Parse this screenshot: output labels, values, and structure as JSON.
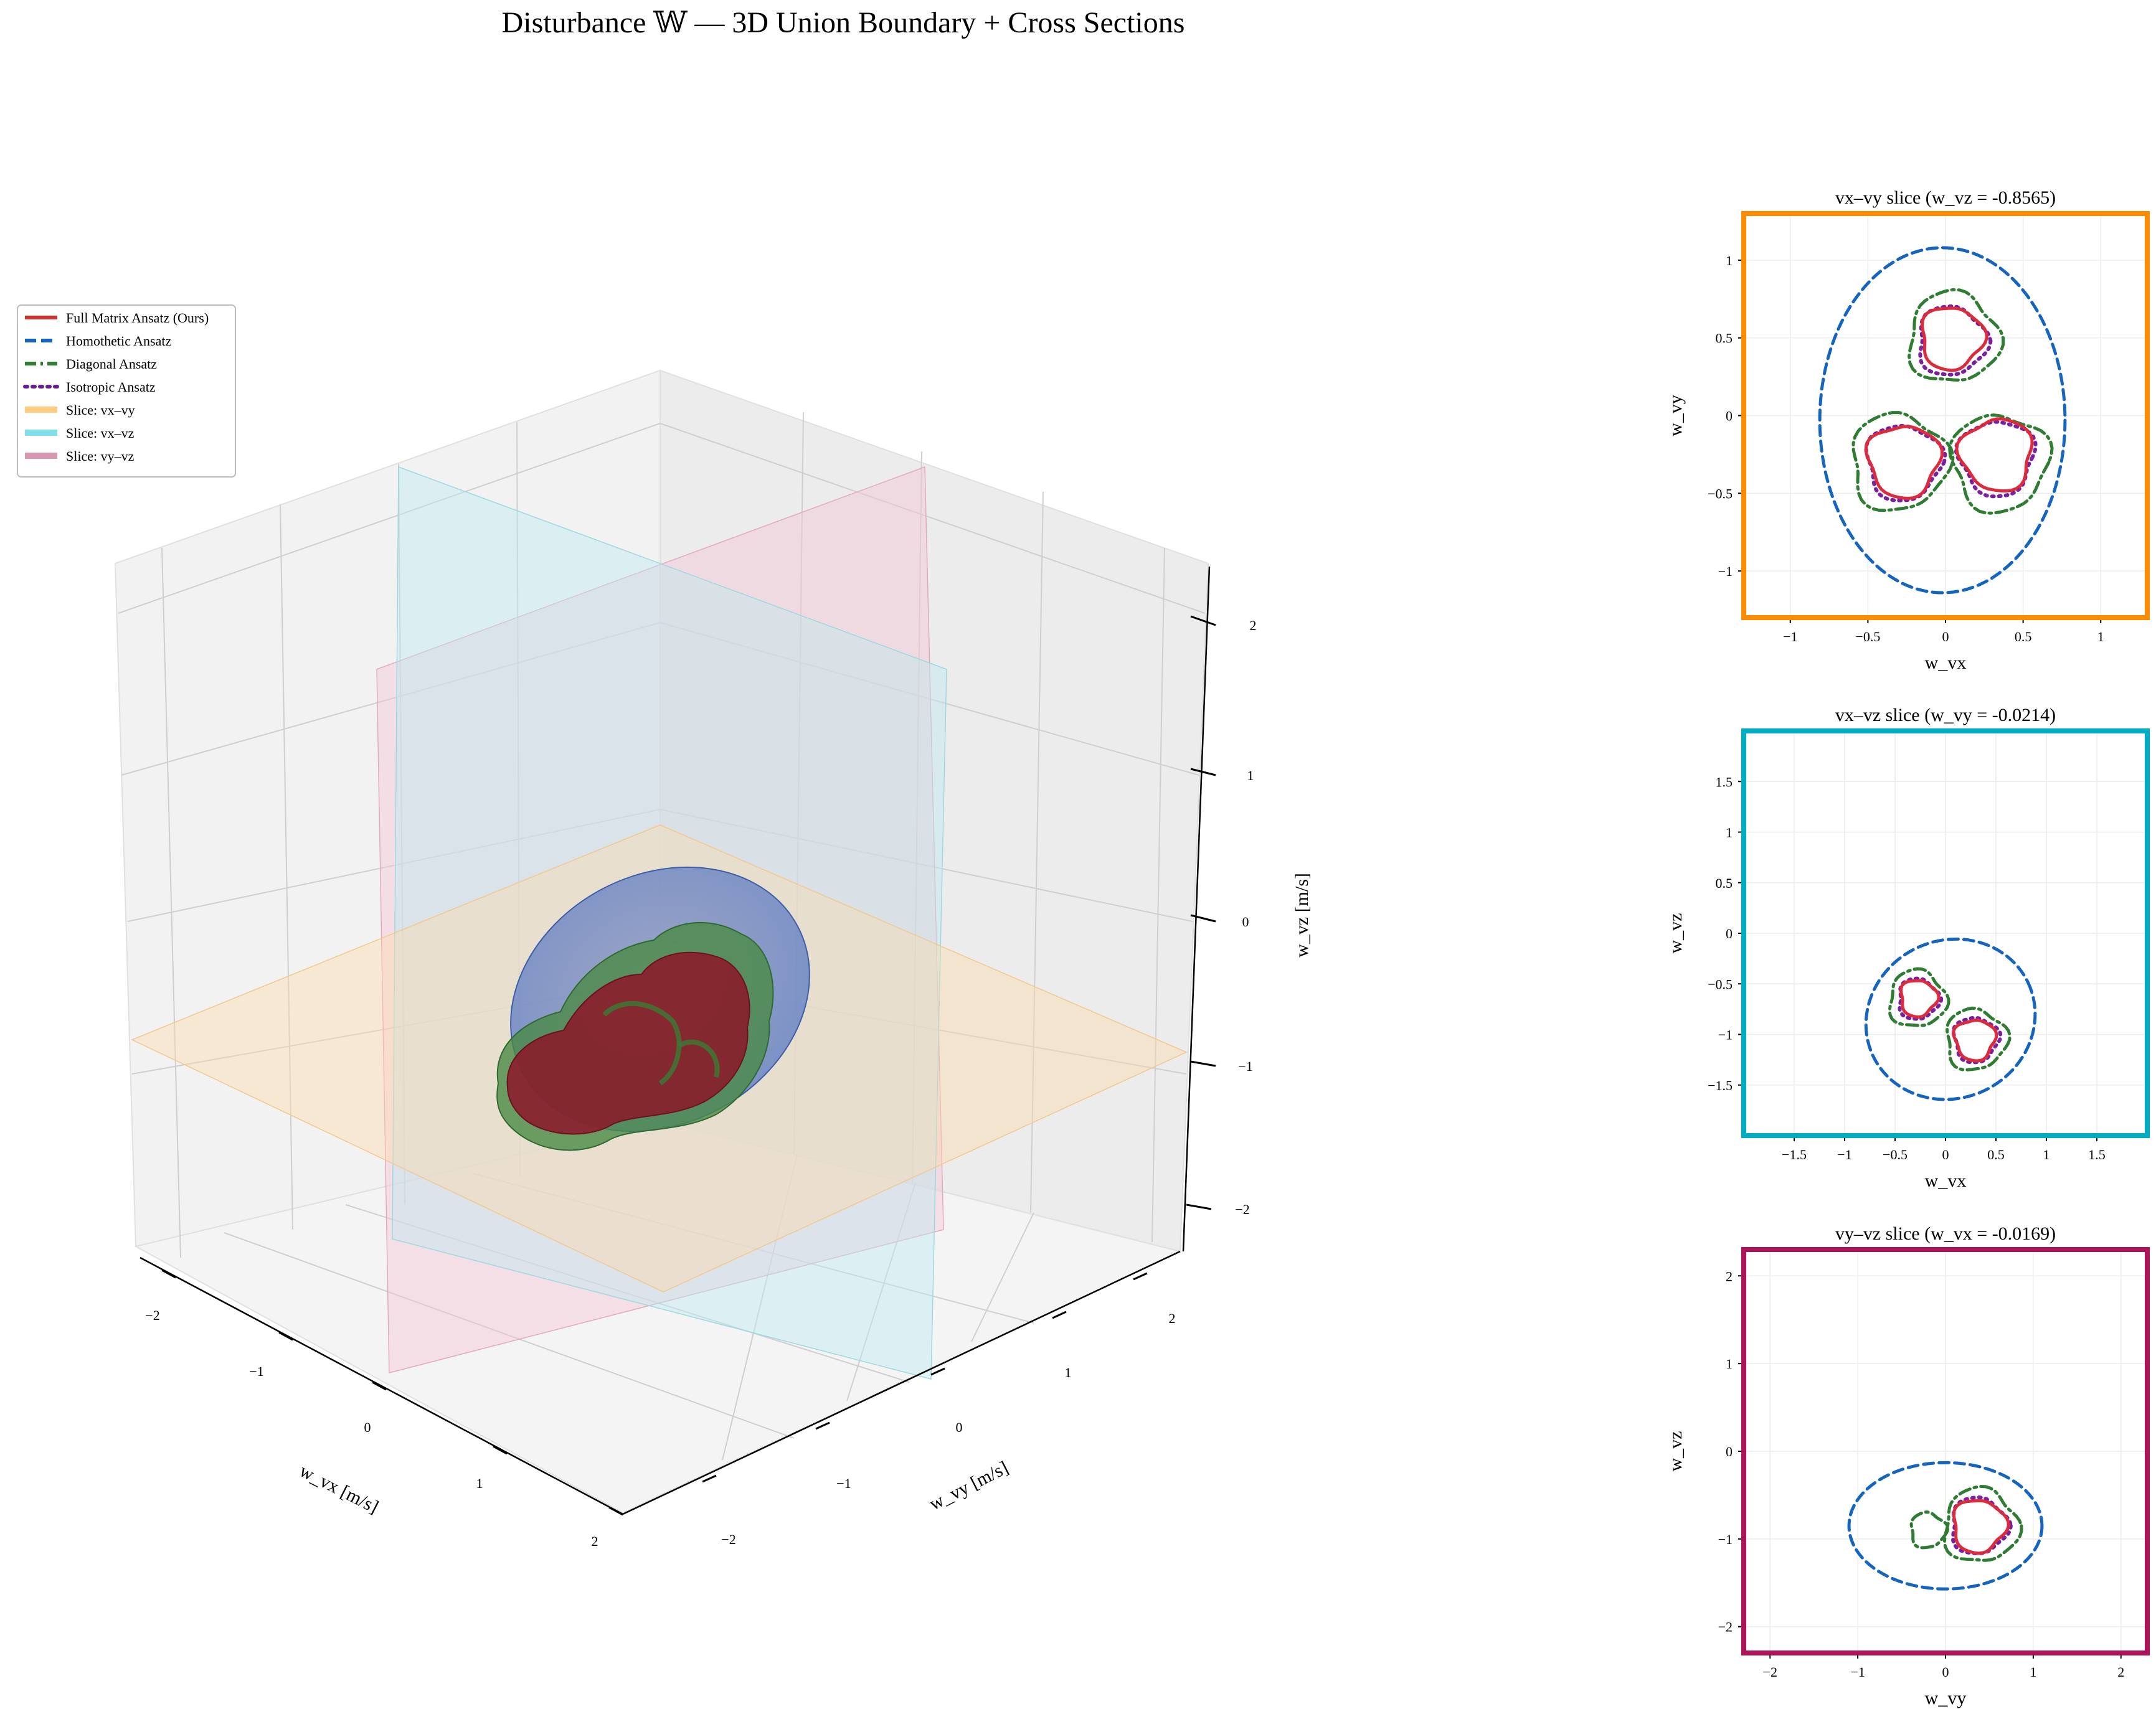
{
  "figure": {
    "title": "Disturbance 𝕎 — 3D Union Boundary + Cross Sections"
  },
  "legend": {
    "items": [
      {
        "label": "Full Matrix Ansatz (Ours)",
        "color": "#d32f2f",
        "style": "solid"
      },
      {
        "label": "Homothetic Ansatz",
        "color": "#1565c0",
        "style": "dashed"
      },
      {
        "label": "Diagonal Ansatz",
        "color": "#2e7d32",
        "style": "dashdot"
      },
      {
        "label": "Isotropic Ansatz",
        "color": "#6a1b9a",
        "style": "dotted"
      },
      {
        "label": "Slice: vx–vy",
        "color": "#ffcc80",
        "style": "solid"
      },
      {
        "label": "Slice: vx–vz",
        "color": "#80deea",
        "style": "solid"
      },
      {
        "label": "Slice: vy–vz",
        "color": "#d896b0",
        "style": "solid"
      }
    ]
  },
  "chart_data": [
    {
      "type": "scatter",
      "kind": "3d-surface",
      "xlabel": "w_vx [m/s]",
      "ylabel": "w_vy [m/s]",
      "zlabel": "w_vz [m/s]",
      "xlim": [
        -2.2,
        2.2
      ],
      "ylim": [
        -2.2,
        2.2
      ],
      "zlim": [
        -2.2,
        2.2
      ],
      "x_ticks": [
        "−2",
        "−1",
        "0",
        "1",
        "2"
      ],
      "y_ticks": [
        "−2",
        "−1",
        "0",
        "1",
        "2"
      ],
      "z_ticks": [
        "−2",
        "−1",
        "0",
        "1",
        "2"
      ],
      "surfaces": [
        {
          "name": "Homothetic Ansatz",
          "color": "#4a6fc4"
        },
        {
          "name": "Diagonal Ansatz",
          "color": "#3a8a3a"
        },
        {
          "name": "Full Matrix Ansatz (Ours)",
          "color": "#8b1a2a"
        }
      ],
      "slice_planes": [
        {
          "name": "Slice: vx–vy",
          "color": "#ffcc80"
        },
        {
          "name": "Slice: vx–vz",
          "color": "#80deea"
        },
        {
          "name": "Slice: vy–vz",
          "color": "#d896b0"
        }
      ]
    },
    {
      "type": "line",
      "title": "vx–vy slice  (w_vz = -0.8565)",
      "xlabel": "w_vx",
      "ylabel": "w_vy",
      "xlim": [
        -1.3,
        1.3
      ],
      "ylim": [
        -1.3,
        1.3
      ],
      "x_ticks": [
        -1.0,
        -0.5,
        0.0,
        0.5,
        1.0
      ],
      "y_ticks": [
        -1.0,
        -0.5,
        0.0,
        0.5,
        1.0
      ],
      "frame_color": "#ff8c00",
      "series": [
        {
          "name": "Homothetic Ansatz",
          "shape": "ellipse",
          "cx": -0.02,
          "cy": -0.03,
          "rx": 0.79,
          "ry": 1.11
        },
        {
          "name": "Diagonal Ansatz",
          "shape": "blobs",
          "blobs": [
            {
              "cx": 0.05,
              "cy": 0.5,
              "r": 0.29
            },
            {
              "cx": -0.3,
              "cy": -0.3,
              "r": 0.31
            },
            {
              "cx": 0.35,
              "cy": -0.3,
              "r": 0.31
            }
          ]
        },
        {
          "name": "Isotropic Ansatz",
          "shape": "blobs",
          "blobs": [
            {
              "cx": 0.04,
              "cy": 0.48,
              "r": 0.22
            },
            {
              "cx": -0.27,
              "cy": -0.3,
              "r": 0.24
            },
            {
              "cx": 0.33,
              "cy": -0.27,
              "r": 0.24
            }
          ]
        },
        {
          "name": "Full Matrix Ansatz (Ours)",
          "shape": "blobs",
          "blobs": [
            {
              "cx": 0.04,
              "cy": 0.5,
              "r": 0.2
            },
            {
              "cx": -0.27,
              "cy": -0.29,
              "r": 0.23
            },
            {
              "cx": 0.33,
              "cy": -0.25,
              "r": 0.23
            }
          ]
        }
      ]
    },
    {
      "type": "line",
      "title": "vx–vz slice  (w_vy = -0.0214)",
      "xlabel": "w_vx",
      "ylabel": "w_vz",
      "xlim": [
        -2.0,
        2.0
      ],
      "ylim": [
        -2.0,
        2.0
      ],
      "x_ticks": [
        -1.5,
        -1.0,
        -0.5,
        0.0,
        0.5,
        1.0,
        1.5
      ],
      "y_ticks": [
        -1.5,
        -1.0,
        -0.5,
        0.0,
        0.5,
        1.0,
        1.5
      ],
      "frame_color": "#00acc1",
      "series": [
        {
          "name": "Homothetic Ansatz",
          "shape": "ellipse",
          "cx": 0.05,
          "cy": -0.85,
          "rx": 0.85,
          "ry": 0.78,
          "angle": -25
        },
        {
          "name": "Diagonal Ansatz",
          "shape": "blobs",
          "blobs": [
            {
              "cx": -0.28,
              "cy": -0.65,
              "r": 0.28
            },
            {
              "cx": 0.3,
              "cy": -1.05,
              "r": 0.3
            }
          ]
        },
        {
          "name": "Isotropic Ansatz",
          "shape": "blobs",
          "blobs": [
            {
              "cx": -0.27,
              "cy": -0.65,
              "r": 0.2
            },
            {
              "cx": 0.3,
              "cy": -1.05,
              "r": 0.22
            }
          ]
        },
        {
          "name": "Full Matrix Ansatz (Ours)",
          "shape": "blobs",
          "blobs": [
            {
              "cx": -0.27,
              "cy": -0.64,
              "r": 0.18
            },
            {
              "cx": 0.29,
              "cy": -1.05,
              "r": 0.2
            }
          ]
        }
      ]
    },
    {
      "type": "line",
      "title": "vy–vz slice  (w_vx = -0.0169)",
      "xlabel": "w_vy",
      "ylabel": "w_vz",
      "xlim": [
        -2.3,
        2.3
      ],
      "ylim": [
        -2.3,
        2.3
      ],
      "x_ticks": [
        -2,
        -1,
        0,
        1,
        2
      ],
      "y_ticks": [
        -2,
        -1,
        0,
        1,
        2
      ],
      "frame_color": "#ad1457",
      "series": [
        {
          "name": "Homothetic Ansatz",
          "shape": "ellipse",
          "cx": 0.0,
          "cy": -0.85,
          "rx": 1.1,
          "ry": 0.72
        },
        {
          "name": "Diagonal Ansatz",
          "shape": "blobs",
          "blobs": [
            {
              "cx": 0.4,
              "cy": -0.85,
              "r": 0.42
            },
            {
              "cx": -0.2,
              "cy": -0.9,
              "r": 0.2
            }
          ]
        },
        {
          "name": "Isotropic Ansatz",
          "shape": "blobs",
          "blobs": [
            {
              "cx": 0.38,
              "cy": -0.85,
              "r": 0.32
            }
          ]
        },
        {
          "name": "Full Matrix Ansatz (Ours)",
          "shape": "blobs",
          "blobs": [
            {
              "cx": 0.38,
              "cy": -0.85,
              "r": 0.3
            }
          ]
        }
      ]
    }
  ]
}
